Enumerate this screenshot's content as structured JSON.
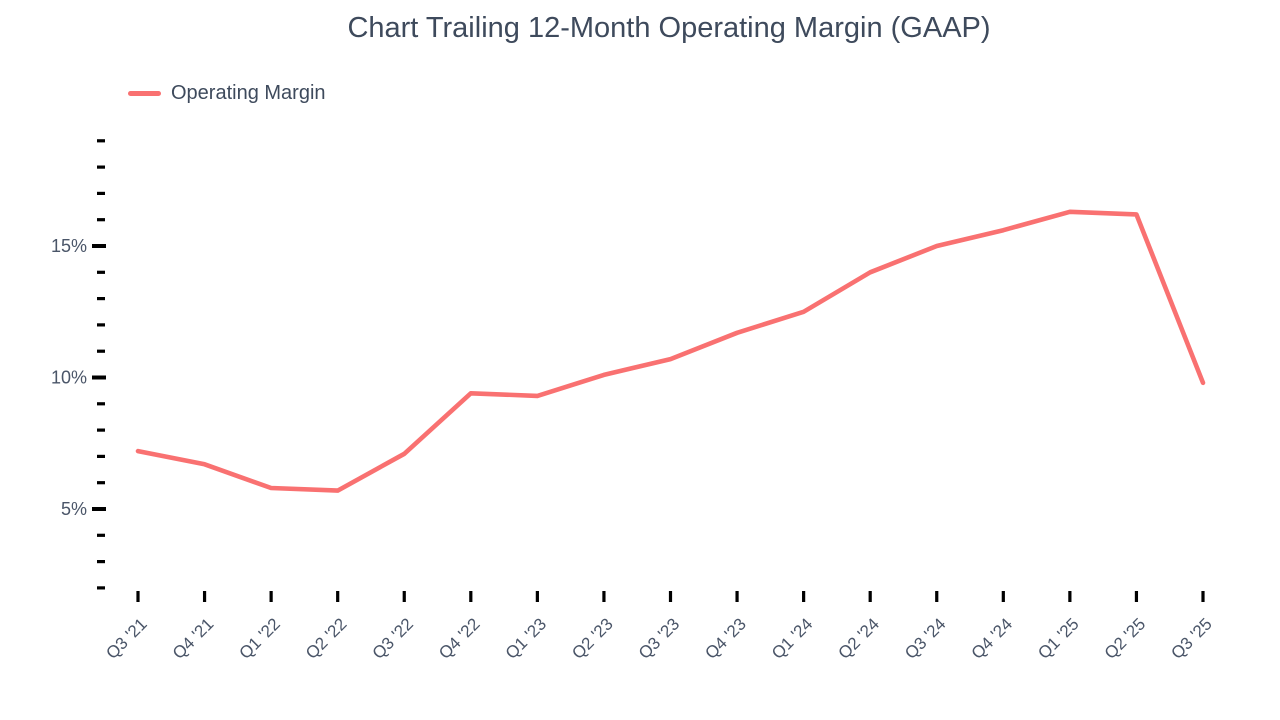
{
  "header": {
    "title": "Chart Trailing 12-Month Operating Margin (GAAP)"
  },
  "legend": {
    "items": [
      {
        "label": "Operating Margin",
        "color": "#F97171"
      }
    ]
  },
  "chart_data": {
    "type": "line",
    "title": "Chart Trailing 12-Month Operating Margin (GAAP)",
    "categories": [
      "Q3 '21",
      "Q4 '21",
      "Q1 '22",
      "Q2 '22",
      "Q3 '22",
      "Q4 '22",
      "Q1 '23",
      "Q2 '23",
      "Q3 '23",
      "Q4 '23",
      "Q1 '24",
      "Q2 '24",
      "Q3 '24",
      "Q4 '24",
      "Q1 '25",
      "Q2 '25",
      "Q3 '25"
    ],
    "series": [
      {
        "name": "Operating Margin",
        "color": "#F97171",
        "values": [
          7.2,
          6.7,
          5.8,
          5.7,
          7.1,
          9.4,
          9.3,
          10.1,
          10.7,
          11.7,
          12.5,
          14.0,
          15.0,
          15.6,
          16.3,
          16.2,
          9.8
        ]
      }
    ],
    "unit": "%",
    "xlabel": "",
    "ylabel": "",
    "y_axis": {
      "min": 2,
      "max": 19,
      "minor_tick_step": 1,
      "labeled_ticks": [
        5,
        10,
        15
      ],
      "label_suffix": "%"
    },
    "grid": false,
    "legend_position": "top-left",
    "colors": {
      "line": "#F97171",
      "title_text": "#3E4A5C",
      "axis_label_text": "#4A5568",
      "tick_marks": "#000000"
    }
  }
}
